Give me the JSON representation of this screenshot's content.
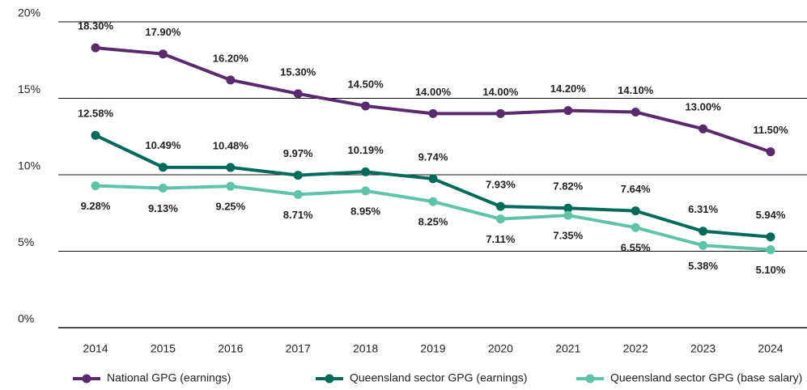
{
  "chart_data": {
    "type": "line",
    "categories": [
      "2014",
      "2015",
      "2016",
      "2017",
      "2018",
      "2019",
      "2020",
      "2021",
      "2022",
      "2023",
      "2024"
    ],
    "series": [
      {
        "name": "National GPG (earnings)",
        "color": "#5b2a6e",
        "label_pos": "above",
        "values": [
          18.3,
          17.9,
          16.2,
          15.3,
          14.5,
          14.0,
          14.0,
          14.2,
          14.1,
          13.0,
          11.5
        ],
        "value_labels": [
          "18.30%",
          "17.90%",
          "16.20%",
          "15.30%",
          "14.50%",
          "14.00%",
          "14.00%",
          "14.20%",
          "14.10%",
          "13.00%",
          "11.50%"
        ]
      },
      {
        "name": "Queensland sector GPG (earnings)",
        "color": "#006b5b",
        "label_pos": "above",
        "values": [
          12.58,
          10.49,
          10.48,
          9.97,
          10.19,
          9.74,
          7.93,
          7.82,
          7.64,
          6.31,
          5.94
        ],
        "value_labels": [
          "12.58%",
          "10.49%",
          "10.48%",
          "9.97%",
          "10.19%",
          "9.74%",
          "7.93%",
          "7.82%",
          "7.64%",
          "6.31%",
          "5.94%"
        ]
      },
      {
        "name": "Queensland sector GPG (base salary)",
        "color": "#5ec4a9",
        "label_pos": "below",
        "values": [
          9.28,
          9.13,
          9.25,
          8.71,
          8.95,
          8.25,
          7.11,
          7.35,
          6.55,
          5.38,
          5.1
        ],
        "value_labels": [
          "9.28%",
          "9.13%",
          "9.25%",
          "8.71%",
          "8.95%",
          "8.25%",
          "7.11%",
          "7.35%",
          "6.55%",
          "5.38%",
          "5.10%"
        ]
      }
    ],
    "ylim": [
      0,
      20
    ],
    "yticks": [
      {
        "value": 0,
        "label": "0%"
      },
      {
        "value": 5,
        "label": "5%"
      },
      {
        "value": 10,
        "label": "10%"
      },
      {
        "value": 15,
        "label": "15%"
      },
      {
        "value": 20,
        "label": "20%"
      }
    ],
    "grid": true,
    "legend": "bottom"
  }
}
